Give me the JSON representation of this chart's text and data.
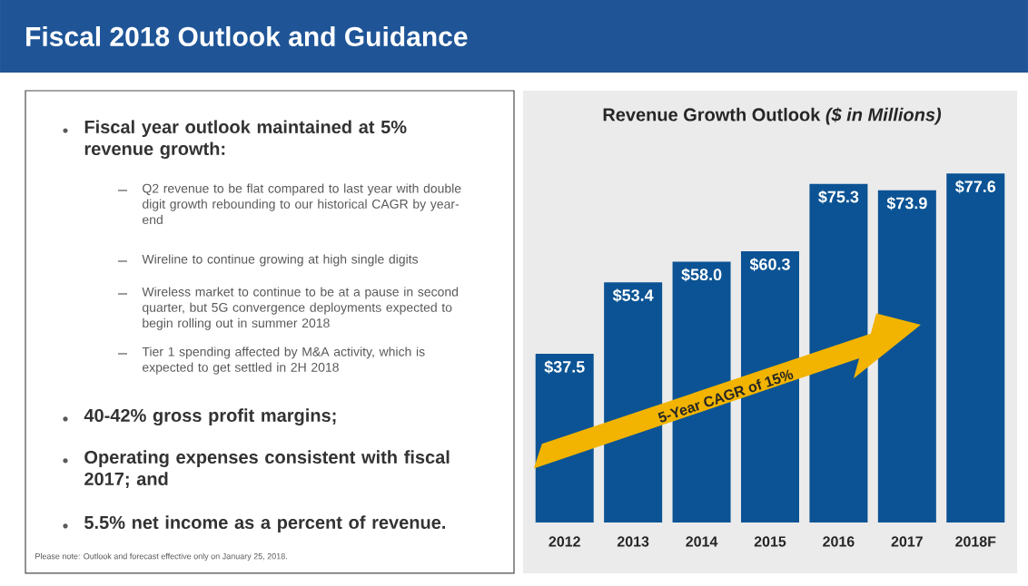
{
  "chart_data": {
    "type": "bar",
    "title": "Fiscal 2018 Outlook and Guidance",
    "subtitle": "Revenue Growth Outlook *($ in Millions)*",
    "categories": [
      "2012",
      "2013",
      "2014",
      "2015",
      "2016",
      "2017",
      "2018F"
    ],
    "values": [
      37.5,
      53.4,
      58.0,
      60.3,
      75.3,
      73.9,
      77.6
    ],
    "value_labels": [
      "$37.5",
      "$53.4",
      "$58.0",
      "$60.3",
      "$75.3",
      "$73.9",
      "$77.6"
    ],
    "color": "#0b5394",
    "annotations": [
      "Fiscal year outlook maintained at 5% revenue growth:",
      "Q2 revenue to be flat compared to last year with double digit growth rebounding to our historical CAGR by year-end",
      "Wireline to continue growing at high single digits",
      "Wireless market to continue to be at a pause in second quarter, but 5G convergence deployments expected to begin rolling out in summer 2018",
      "Tier 1 spending affected by M&A activity, which is expected to get settled in 2H 2018",
      "40-42% gross profit margins;",
      "Operating expenses consistent with fiscal 2017; and",
      "5.5% net income as a percent of revenue.",
      "Please note: Outlook and forecast effective only on January 25, 2018.",
      "5-Year CAGR of 15%"
    ]
  }
}
